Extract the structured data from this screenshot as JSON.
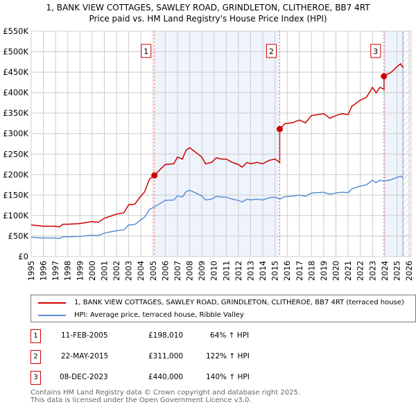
{
  "title": "1, BANK VIEW COTTAGES, SAWLEY ROAD, GRINDLETON, CLITHEROE, BB7 4RT",
  "subtitle": "Price paid vs. HM Land Registry's House Price Index (HPI)",
  "chart_data": {
    "type": "line",
    "title": "1, BANK VIEW COTTAGES, SAWLEY ROAD, GRINDLETON, CLITHEROE, BB7 4RT",
    "subtitle": "Price paid vs. HM Land Registry's House Price Index (HPI)",
    "xlim": [
      1995,
      2026
    ],
    "ylim": [
      0,
      550000
    ],
    "x_ticks": [
      "1995",
      "1996",
      "1997",
      "1998",
      "1999",
      "2000",
      "2001",
      "2002",
      "2003",
      "2004",
      "2005",
      "2006",
      "2007",
      "2008",
      "2009",
      "2010",
      "2011",
      "2012",
      "2013",
      "2014",
      "2015",
      "2016",
      "2017",
      "2018",
      "2019",
      "2020",
      "2021",
      "2022",
      "2023",
      "2024",
      "2025",
      "2026"
    ],
    "y_ticks": [
      "£0",
      "£50K",
      "£100K",
      "£150K",
      "£200K",
      "£250K",
      "£300K",
      "£350K",
      "£400K",
      "£450K",
      "£500K",
      "£550K"
    ],
    "grid": true,
    "colors": {
      "red": "#cc0000",
      "hpi": "#5b8fd4",
      "shade": "#eef3fc"
    },
    "hpi_series": {
      "name": "HPI: Average price, terraced house, Ribble Valley",
      "x": [
        1995,
        1995.5,
        1996,
        1997,
        1997.3,
        1997.6,
        1998,
        1999,
        2000,
        2000.5,
        2001,
        2001.5,
        2002,
        2002.6,
        2003,
        2003.5,
        2004,
        2004.3,
        2004.7,
        2005.1,
        2005.5,
        2006,
        2006.7,
        2007,
        2007.4,
        2007.7,
        2008,
        2008.5,
        2009,
        2009.3,
        2009.8,
        2010.2,
        2010.6,
        2011,
        2011.5,
        2012,
        2012.3,
        2012.7,
        2013,
        2013.5,
        2014,
        2014.5,
        2015,
        2015.4,
        2015.8,
        2016.4,
        2017,
        2017.5,
        2018,
        2018.5,
        2019,
        2019.5,
        2020,
        2020.5,
        2021,
        2021.3,
        2022,
        2022.5,
        2023,
        2023.3,
        2023.6,
        2023.95,
        2024.5,
        2025,
        2025.3,
        2025.5
      ],
      "values": [
        47000,
        46000,
        45000,
        45000,
        44000,
        48000,
        48000,
        49000,
        52000,
        51000,
        57000,
        60000,
        63000,
        65000,
        77000,
        78000,
        90000,
        96000,
        115000,
        121000,
        128000,
        137000,
        138000,
        148000,
        145000,
        158000,
        162000,
        155000,
        148000,
        138000,
        140000,
        147000,
        145000,
        145000,
        140000,
        137000,
        133000,
        140000,
        138000,
        140000,
        138000,
        143000,
        145000,
        140000,
        146000,
        147000,
        150000,
        147000,
        155000,
        156000,
        157000,
        152000,
        155000,
        157000,
        156000,
        165000,
        172000,
        175000,
        186000,
        180000,
        186000,
        184000,
        187000,
        193000,
        196000,
        192000
      ]
    },
    "price_series": {
      "name": "1, BANK VIEW COTTAGES, SAWLEY ROAD, GRINDLETON, CLITHEROE, BB7 4RT (terraced house)",
      "multipliers": [
        [
          1995,
          1.64
        ],
        [
          2015.39,
          2.22
        ],
        [
          2023.94,
          2.4
        ]
      ]
    },
    "sales": [
      {
        "n": "1",
        "date": "11-FEB-2005",
        "x": 2005.11,
        "price": 198010,
        "price_label": "£198,010",
        "hpi": "64% ↑ HPI"
      },
      {
        "n": "2",
        "date": "22-MAY-2015",
        "x": 2015.39,
        "price": 311000,
        "price_label": "£311,000",
        "hpi": "122% ↑ HPI"
      },
      {
        "n": "3",
        "date": "08-DEC-2023",
        "x": 2023.94,
        "price": 440000,
        "price_label": "£440,000",
        "hpi": "140% ↑ HPI"
      }
    ],
    "forecast_start": 2025.5
  },
  "legend": {
    "price": "1, BANK VIEW COTTAGES, SAWLEY ROAD, GRINDLETON, CLITHEROE, BB7 4RT (terraced house)",
    "hpi": "HPI: Average price, terraced house, Ribble Valley"
  },
  "footer": {
    "line1": "Contains HM Land Registry data © Crown copyright and database right 2025.",
    "line2": "This data is licensed under the Open Government Licence v3.0."
  }
}
